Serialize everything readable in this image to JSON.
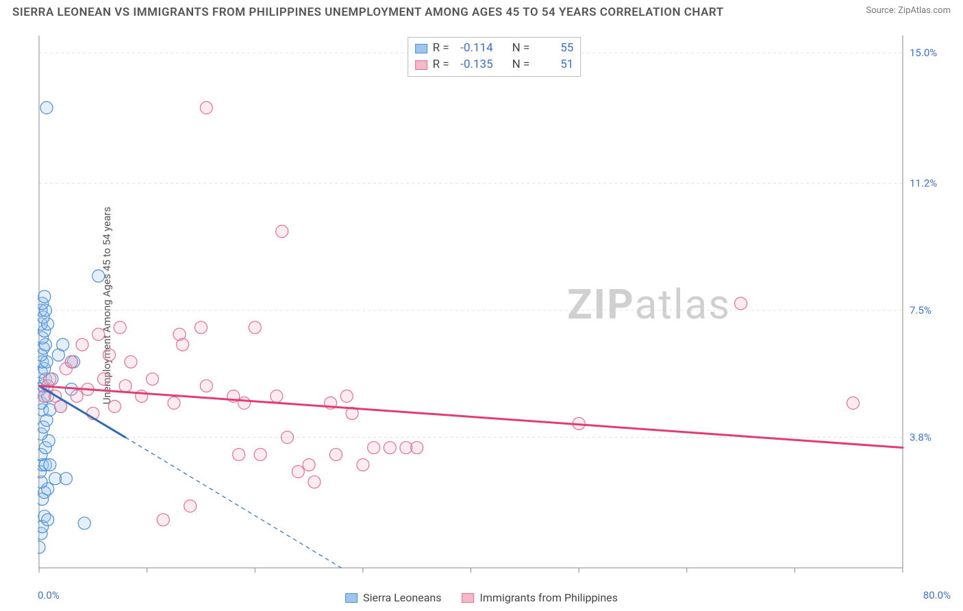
{
  "title": "SIERRA LEONEAN VS IMMIGRANTS FROM PHILIPPINES UNEMPLOYMENT AMONG AGES 45 TO 54 YEARS CORRELATION CHART",
  "source": "Source: ZipAtlas.com",
  "y_axis_label": "Unemployment Among Ages 45 to 54 years",
  "watermark_bold": "ZIP",
  "watermark_rest": "atlas",
  "chart": {
    "type": "scatter",
    "background_color": "#ffffff",
    "grid_color": "#e2e2e2",
    "axis_color": "#888888",
    "tick_color": "#888888",
    "xlim": [
      0,
      80
    ],
    "ylim": [
      0,
      15.5
    ],
    "x_ticks_major": [
      0,
      10,
      20,
      30,
      40,
      50,
      60,
      70,
      80
    ],
    "y_gridlines": [
      3.8,
      7.5,
      11.2,
      15.0
    ],
    "y_tick_labels": [
      "3.8%",
      "7.5%",
      "11.2%",
      "15.0%"
    ],
    "x_min_label": "0.0%",
    "x_max_label": "80.0%",
    "marker_radius": 9,
    "marker_stroke_width": 1.2,
    "marker_fill_opacity": 0.28,
    "label_fontsize": 15,
    "tick_label_color": "#3a6fd8",
    "series": [
      {
        "name": "Sierra Leoneans",
        "color_fill": "#9ec5ec",
        "color_stroke": "#4a8fd6",
        "legend_label": "Sierra Leoneans",
        "R_label": "R =",
        "R": "-0.114",
        "N_label": "N =",
        "N": "55",
        "trend": {
          "x1": 0,
          "y1": 5.3,
          "x2": 8.0,
          "y2": 3.8,
          "color": "#2e6bbd",
          "width": 3
        },
        "trend_dash": {
          "x1": 8.0,
          "y1": 3.8,
          "x2": 28,
          "y2": 0.0,
          "color": "#2e6bbd",
          "width": 1.2
        },
        "points": [
          [
            0.0,
            0.6
          ],
          [
            0.2,
            1.0
          ],
          [
            0.3,
            1.2
          ],
          [
            0.5,
            1.5
          ],
          [
            0.3,
            2.0
          ],
          [
            0.5,
            2.2
          ],
          [
            0.8,
            2.3
          ],
          [
            0.2,
            2.5
          ],
          [
            1.5,
            2.6
          ],
          [
            2.5,
            2.6
          ],
          [
            0.1,
            2.8
          ],
          [
            0.3,
            3.0
          ],
          [
            0.6,
            3.0
          ],
          [
            1.0,
            3.0
          ],
          [
            0.2,
            3.3
          ],
          [
            0.6,
            3.5
          ],
          [
            0.9,
            3.7
          ],
          [
            0.2,
            3.9
          ],
          [
            0.4,
            4.1
          ],
          [
            0.7,
            4.3
          ],
          [
            0.3,
            4.6
          ],
          [
            1.0,
            4.6
          ],
          [
            2.0,
            4.7
          ],
          [
            0.2,
            4.8
          ],
          [
            0.5,
            5.0
          ],
          [
            0.8,
            5.0
          ],
          [
            0.1,
            5.2
          ],
          [
            0.4,
            5.3
          ],
          [
            0.6,
            5.5
          ],
          [
            1.2,
            5.5
          ],
          [
            0.2,
            5.7
          ],
          [
            0.5,
            5.8
          ],
          [
            0.3,
            6.0
          ],
          [
            0.7,
            6.0
          ],
          [
            3.0,
            6.0
          ],
          [
            0.2,
            6.2
          ],
          [
            1.8,
            6.2
          ],
          [
            0.4,
            6.4
          ],
          [
            0.6,
            6.5
          ],
          [
            2.2,
            6.5
          ],
          [
            0.3,
            6.7
          ],
          [
            0.5,
            6.9
          ],
          [
            0.2,
            7.1
          ],
          [
            0.8,
            7.1
          ],
          [
            0.4,
            7.3
          ],
          [
            0.2,
            7.5
          ],
          [
            0.6,
            7.5
          ],
          [
            0.3,
            7.7
          ],
          [
            0.5,
            7.9
          ],
          [
            3.2,
            6.0
          ],
          [
            0.8,
            1.4
          ],
          [
            4.2,
            1.3
          ],
          [
            5.5,
            8.5
          ],
          [
            0.7,
            13.4
          ],
          [
            3.0,
            5.2
          ]
        ]
      },
      {
        "name": "Immigrants from Philippines",
        "color_fill": "#f5b8c8",
        "color_stroke": "#e86e91",
        "legend_label": "Immigrants from Philippines",
        "R_label": "R =",
        "R": "-0.135",
        "N_label": "N =",
        "N": "51",
        "trend": {
          "x1": 0,
          "y1": 5.3,
          "x2": 80,
          "y2": 3.5,
          "color": "#e23d72",
          "width": 3
        },
        "points": [
          [
            0.5,
            5.0
          ],
          [
            0.8,
            5.3
          ],
          [
            1.0,
            5.5
          ],
          [
            1.5,
            5.0
          ],
          [
            2.0,
            4.7
          ],
          [
            2.5,
            5.8
          ],
          [
            3.0,
            6.0
          ],
          [
            3.5,
            5.0
          ],
          [
            4.0,
            6.5
          ],
          [
            4.5,
            5.2
          ],
          [
            5.0,
            4.5
          ],
          [
            5.5,
            6.8
          ],
          [
            6.0,
            5.5
          ],
          [
            6.5,
            6.2
          ],
          [
            7.0,
            4.7
          ],
          [
            7.5,
            7.0
          ],
          [
            8.0,
            5.3
          ],
          [
            8.5,
            6.0
          ],
          [
            9.5,
            5.0
          ],
          [
            10.5,
            5.5
          ],
          [
            12.5,
            4.8
          ],
          [
            13.0,
            6.8
          ],
          [
            13.3,
            6.5
          ],
          [
            15.0,
            7.0
          ],
          [
            15.5,
            5.3
          ],
          [
            18.0,
            5.0
          ],
          [
            18.5,
            3.3
          ],
          [
            19.0,
            4.8
          ],
          [
            20.0,
            7.0
          ],
          [
            20.5,
            3.3
          ],
          [
            22.0,
            5.0
          ],
          [
            23.0,
            3.8
          ],
          [
            24.0,
            2.8
          ],
          [
            25.0,
            3.0
          ],
          [
            25.5,
            2.5
          ],
          [
            27.0,
            4.8
          ],
          [
            27.5,
            3.3
          ],
          [
            28.5,
            5.0
          ],
          [
            29.0,
            4.5
          ],
          [
            30.0,
            3.0
          ],
          [
            31.0,
            3.5
          ],
          [
            32.5,
            3.5
          ],
          [
            34.0,
            3.5
          ],
          [
            35.0,
            3.5
          ],
          [
            14.0,
            1.8
          ],
          [
            11.5,
            1.4
          ],
          [
            22.5,
            9.8
          ],
          [
            15.5,
            13.4
          ],
          [
            50.0,
            4.2
          ],
          [
            65.0,
            7.7
          ],
          [
            75.4,
            4.8
          ]
        ]
      }
    ]
  }
}
